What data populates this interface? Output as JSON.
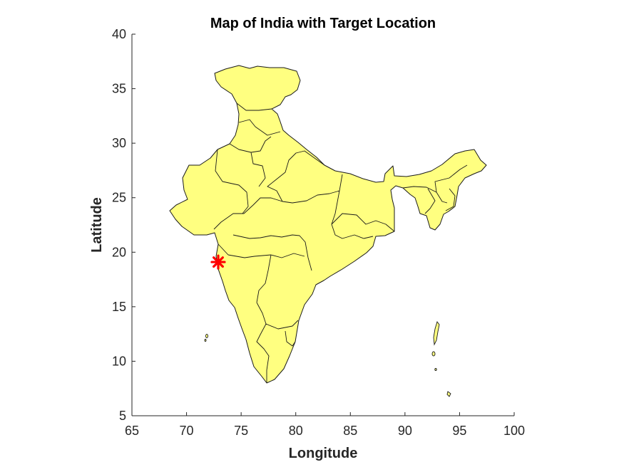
{
  "chart_data": {
    "type": "map",
    "title": "Map of India with Target Location",
    "xlabel": "Longitude",
    "ylabel": "Latitude",
    "xlim": [
      65,
      100
    ],
    "ylim": [
      5,
      40
    ],
    "xticks": [
      65,
      70,
      75,
      80,
      85,
      90,
      95,
      100
    ],
    "yticks": [
      5,
      10,
      15,
      20,
      25,
      30,
      35,
      40
    ],
    "land_color": "#ffff80",
    "marker": {
      "lon": 72.9,
      "lat": 19.1,
      "symbol": "asterisk",
      "color": "#ff0000"
    },
    "grid": false
  }
}
